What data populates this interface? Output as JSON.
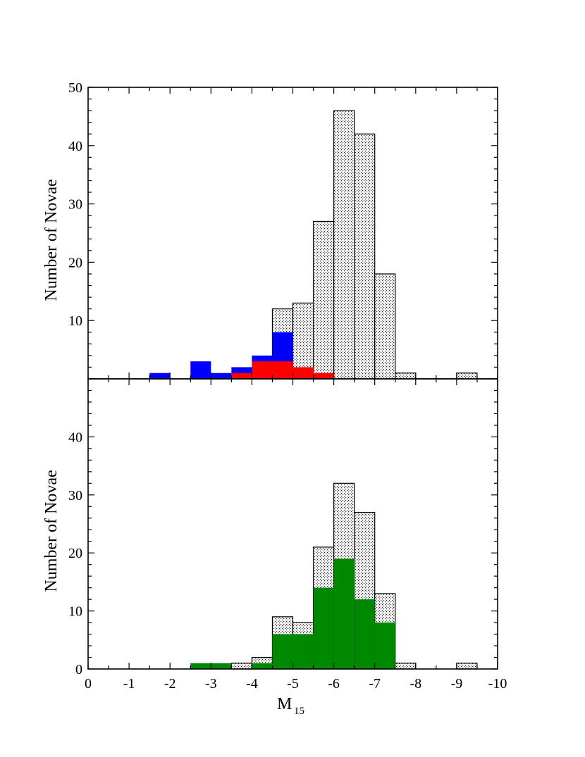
{
  "chart_data": [
    {
      "type": "bar",
      "panel": "top",
      "title": "",
      "xlabel": "",
      "ylabel": "Number of Novae",
      "xlim": [
        0,
        -10
      ],
      "ylim": [
        0,
        50
      ],
      "yticks": [
        10,
        20,
        30,
        40,
        50
      ],
      "ytick_labels": [
        "10",
        "20",
        "30",
        "40",
        "50"
      ],
      "bin_width": 0.5,
      "grid": false,
      "series": [
        {
          "style": "stipple",
          "color": "#d9d9d9",
          "bin_left": [
            -4.0,
            -4.5,
            -5.0,
            -5.5,
            -6.0,
            -6.5,
            -7.0,
            -7.5,
            -9.0
          ],
          "values": [
            2,
            12,
            13,
            27,
            46,
            42,
            18,
            1,
            1
          ]
        },
        {
          "style": "solid",
          "color": "#0000ff",
          "bin_left": [
            -1.5,
            -2.5,
            -3.0,
            -3.5,
            -4.0,
            -4.5
          ],
          "values": [
            1,
            3,
            1,
            2,
            4,
            8
          ]
        },
        {
          "style": "solid",
          "color": "#ff0000",
          "bin_left": [
            -3.5,
            -4.0,
            -4.5,
            -5.0,
            -5.5
          ],
          "values": [
            1,
            3,
            3,
            2,
            1
          ]
        }
      ]
    },
    {
      "type": "bar",
      "panel": "bottom",
      "title": "",
      "xlabel": "M",
      "xlabel_sub": "15",
      "ylabel": "Number of Novae",
      "xlim": [
        0,
        -10
      ],
      "ylim": [
        0,
        50
      ],
      "xticks": [
        0,
        -1,
        -2,
        -3,
        -4,
        -5,
        -6,
        -7,
        -8,
        -9,
        -10
      ],
      "xtick_labels": [
        "0",
        "-1",
        "-2",
        "-3",
        "-4",
        "-5",
        "-6",
        "-7",
        "-8",
        "-9",
        "-10"
      ],
      "yticks": [
        0,
        10,
        20,
        30,
        40
      ],
      "ytick_labels": [
        "0",
        "10",
        "20",
        "30",
        "40"
      ],
      "bin_width": 0.5,
      "grid": false,
      "series": [
        {
          "style": "stipple",
          "color": "#d9d9d9",
          "bin_left": [
            -3.5,
            -4.0,
            -4.5,
            -5.0,
            -5.5,
            -6.0,
            -6.5,
            -7.0,
            -7.5,
            -9.0
          ],
          "values": [
            1,
            2,
            9,
            8,
            21,
            32,
            27,
            13,
            1,
            1
          ]
        },
        {
          "style": "solid",
          "color": "#008800",
          "bin_left": [
            -2.5,
            -3.0,
            -4.0,
            -4.5,
            -5.0,
            -5.5,
            -6.0,
            -6.5,
            -7.0
          ],
          "values": [
            1,
            1,
            1,
            6,
            6,
            14,
            19,
            12,
            8
          ]
        }
      ]
    }
  ]
}
